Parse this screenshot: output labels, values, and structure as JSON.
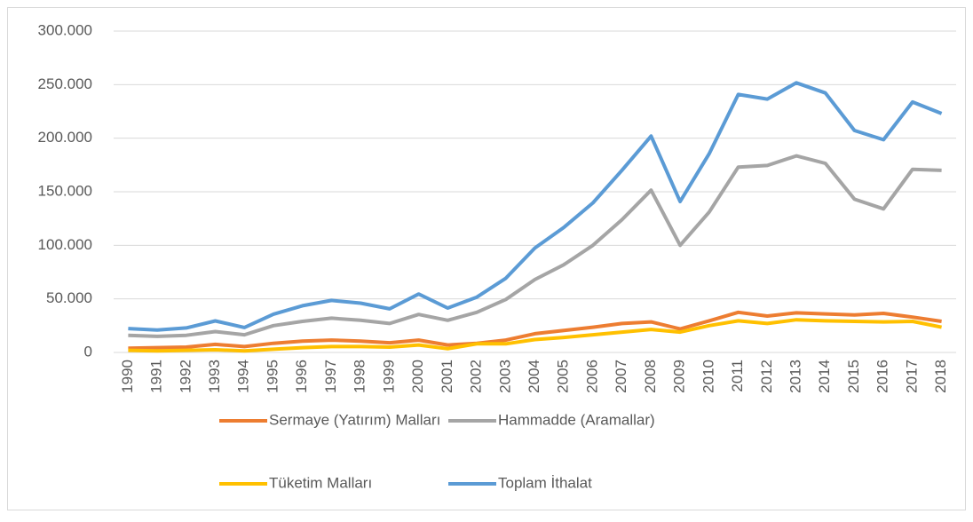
{
  "chart_data": {
    "type": "line",
    "categories": [
      "1990",
      "1991",
      "1992",
      "1993",
      "1994",
      "1995",
      "1996",
      "1997",
      "1998",
      "1999",
      "2000",
      "2001",
      "2002",
      "2003",
      "2004",
      "2005",
      "2006",
      "2007",
      "2008",
      "2009",
      "2010",
      "2011",
      "2012",
      "2013",
      "2014",
      "2015",
      "2016",
      "2017",
      "2018"
    ],
    "series": [
      {
        "name": "Sermaye (Yatırım) Malları",
        "color": "#ed7d31",
        "values": [
          4000,
          4500,
          5000,
          7500,
          5500,
          8500,
          10500,
          11500,
          10500,
          9000,
          11500,
          7000,
          8500,
          11500,
          17500,
          20500,
          23500,
          27000,
          28500,
          22000,
          29500,
          37500,
          34000,
          37000,
          36000,
          35000,
          36500,
          33000,
          29000
        ]
      },
      {
        "name": "Hammadde (Aramallar)",
        "color": "#a5a5a5",
        "values": [
          16000,
          15000,
          16000,
          19500,
          16500,
          25000,
          29000,
          32000,
          30000,
          27000,
          35500,
          30000,
          37500,
          49500,
          68000,
          82000,
          100000,
          124000,
          151500,
          100000,
          131000,
          173000,
          174500,
          183500,
          176500,
          143000,
          134000,
          171000,
          170000
        ]
      },
      {
        "name": "Tüketim Malları",
        "color": "#ffc000",
        "values": [
          2000,
          1500,
          2000,
          2500,
          1500,
          3000,
          4500,
          5500,
          5500,
          5000,
          7000,
          3500,
          8000,
          8000,
          12000,
          14000,
          16500,
          19000,
          21500,
          19000,
          25000,
          29500,
          27000,
          30500,
          29500,
          29000,
          28500,
          29000,
          23500
        ]
      },
      {
        "name": "Toplam İthalat",
        "color": "#5b9bd5",
        "values": [
          22300,
          21000,
          22900,
          29400,
          23300,
          35700,
          43600,
          48600,
          46000,
          40700,
          54500,
          41400,
          51600,
          69300,
          97500,
          116800,
          139600,
          170100,
          202000,
          140900,
          185500,
          240800,
          236500,
          251700,
          242200,
          207200,
          198600,
          233800,
          223000
        ]
      }
    ],
    "ylim": [
      0,
      300000
    ],
    "yticks": [
      0,
      {
        "value": 50000,
        "label": "50.000"
      },
      {
        "value": 100000,
        "label": "100.000"
      },
      {
        "value": 150000,
        "label": "150.000"
      },
      {
        "value": 200000,
        "label": "200.000"
      },
      {
        "value": 250000,
        "label": "250.000"
      },
      {
        "value": 300000,
        "label": "300.000"
      }
    ],
    "grid": true,
    "legend": "bottom"
  }
}
